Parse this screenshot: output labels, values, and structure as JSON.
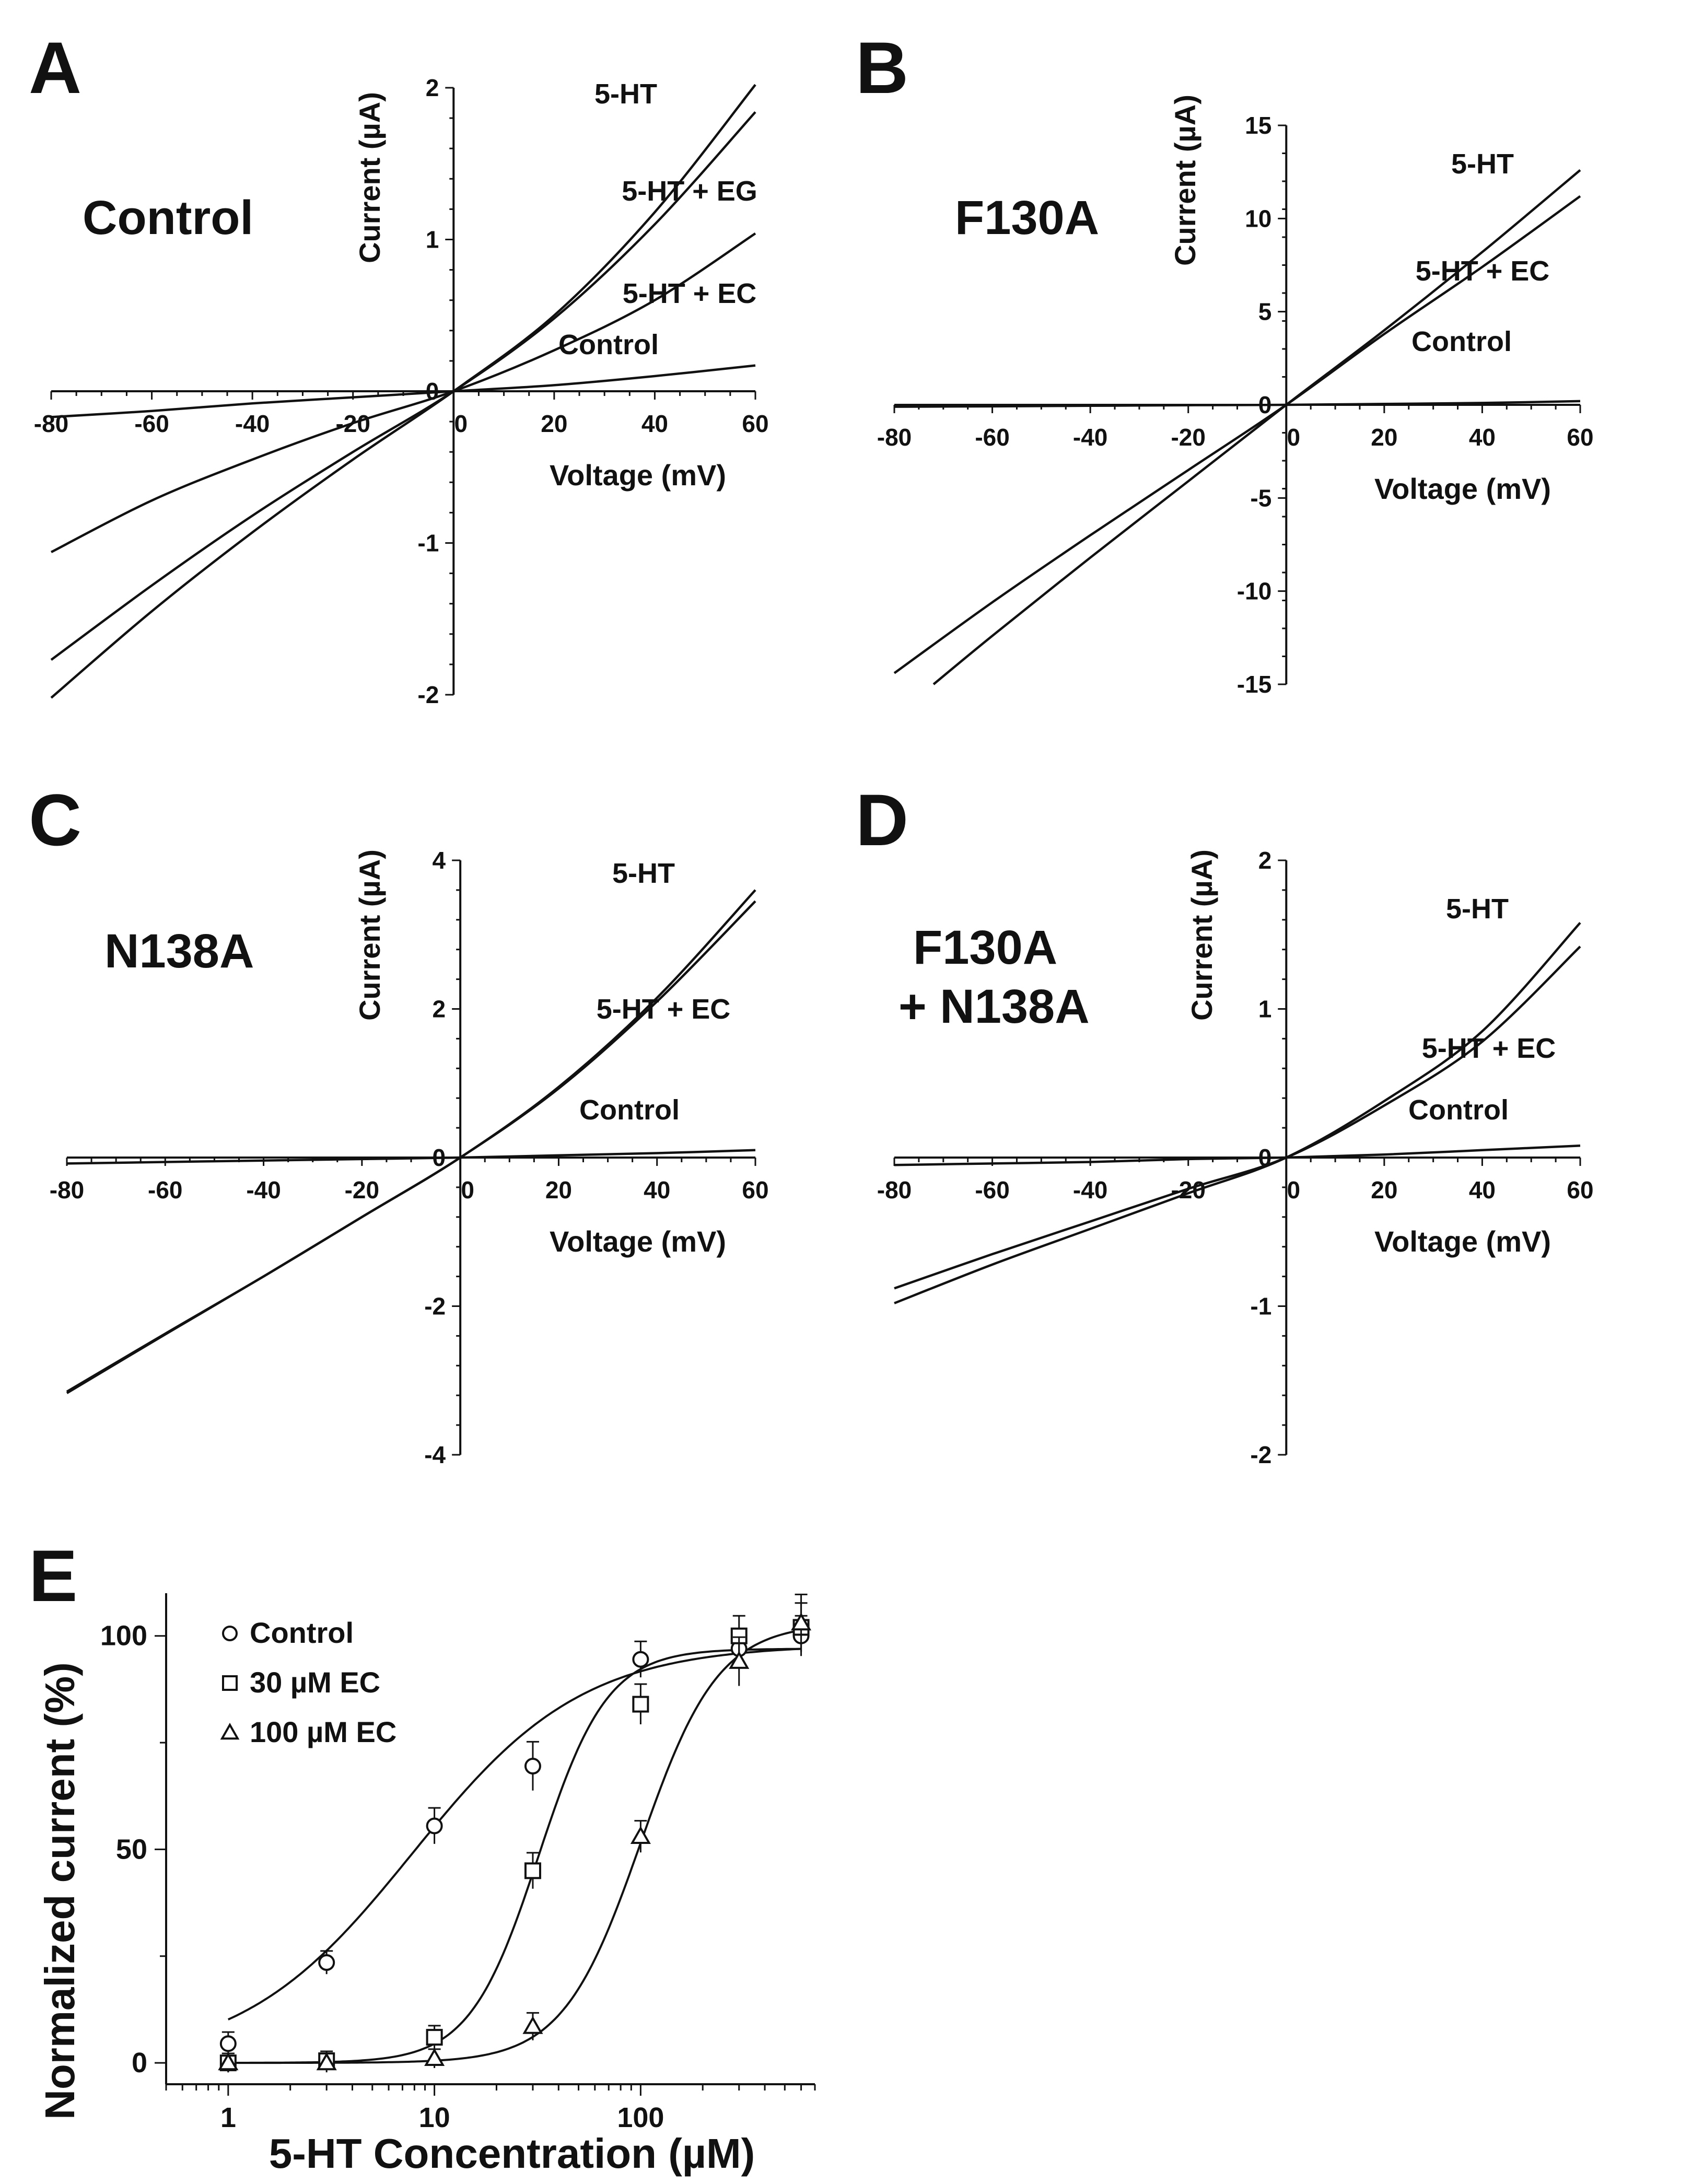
{
  "panels": [
    {
      "id": "A",
      "letter": "A",
      "condition": [
        "Control"
      ],
      "ylabel": "Current (µA)",
      "xlabel": "Voltage (mV)",
      "xticks": [
        "-80",
        "-60",
        "-40",
        "-20",
        "0",
        "20",
        "40",
        "60"
      ],
      "yticks": [
        "2",
        "1",
        "0",
        "-1",
        "-2"
      ],
      "series_labels": [
        "5-HT",
        "5-HT + EG",
        "5-HT + EC",
        "Control"
      ]
    },
    {
      "id": "B",
      "letter": "B",
      "condition": [
        "F130A"
      ],
      "ylabel": "Current (µA)",
      "xlabel": "Voltage (mV)",
      "xticks": [
        "-80",
        "-60",
        "-40",
        "-20",
        "0",
        "20",
        "40",
        "60"
      ],
      "yticks": [
        "15",
        "10",
        "5",
        "0",
        "-5",
        "-10",
        "-15"
      ],
      "series_labels": [
        "5-HT",
        "5-HT + EC",
        "Control"
      ]
    },
    {
      "id": "C",
      "letter": "C",
      "condition": [
        "N138A"
      ],
      "ylabel": "Current (µA)",
      "xlabel": "Voltage (mV)",
      "xticks": [
        "-80",
        "-60",
        "-40",
        "-20",
        "0",
        "20",
        "40",
        "60"
      ],
      "yticks": [
        "4",
        "2",
        "0",
        "-2",
        "-4"
      ],
      "series_labels": [
        "5-HT",
        "5-HT + EC",
        "Control"
      ]
    },
    {
      "id": "D",
      "letter": "D",
      "condition": [
        "F130A",
        "+ N138A"
      ],
      "ylabel": "Current (µA)",
      "xlabel": "Voltage (mV)",
      "xticks": [
        "-80",
        "-60",
        "-40",
        "-20",
        "0",
        "20",
        "40",
        "60"
      ],
      "yticks": [
        "2",
        "1",
        "0",
        "-1",
        "-2"
      ],
      "series_labels": [
        "5-HT",
        "5-HT + EC",
        "Control"
      ]
    },
    {
      "id": "E",
      "letter": "E",
      "ylabel": "Normalized current (%)",
      "xlabel": "5-HT Concentration (µM)",
      "xticks": [
        "1",
        "10",
        "100"
      ],
      "yticks": [
        "100",
        "50",
        "0"
      ],
      "legend": [
        "Control",
        "30 µM EC",
        "100 µM EC"
      ]
    }
  ],
  "chart_data": [
    {
      "type": "line",
      "panel": "A",
      "xlim": [
        -80,
        60
      ],
      "ylim": [
        -2,
        2
      ],
      "series": [
        {
          "name": "5-HT",
          "x": [
            -80,
            -60,
            -40,
            -20,
            0,
            20,
            40,
            60
          ],
          "y": [
            -2.02,
            -1.45,
            -0.93,
            -0.45,
            0,
            0.5,
            1.18,
            2.02
          ]
        },
        {
          "name": "5-HT + EG",
          "x": [
            -80,
            -60,
            -40,
            -20,
            0,
            20,
            40,
            60
          ],
          "y": [
            -1.77,
            -1.28,
            -0.82,
            -0.4,
            0,
            0.48,
            1.1,
            1.84
          ]
        },
        {
          "name": "5-HT + EC",
          "x": [
            -80,
            -60,
            -40,
            -20,
            0,
            20,
            40,
            60
          ],
          "y": [
            -1.06,
            -0.72,
            -0.45,
            -0.21,
            0,
            0.27,
            0.6,
            1.04
          ]
        },
        {
          "name": "Control",
          "x": [
            -80,
            -60,
            -40,
            -20,
            0,
            20,
            40,
            60
          ],
          "y": [
            -0.17,
            -0.13,
            -0.08,
            -0.04,
            0,
            0.04,
            0.1,
            0.17
          ]
        }
      ]
    },
    {
      "type": "line",
      "panel": "B",
      "xlim": [
        -80,
        60
      ],
      "ylim": [
        -15,
        15
      ],
      "series": [
        {
          "name": "5-HT",
          "x": [
            -72,
            -60,
            -40,
            -20,
            0,
            20,
            40,
            60
          ],
          "y": [
            -15,
            -12.4,
            -8.2,
            -4.1,
            0,
            4.0,
            8.2,
            12.6
          ]
        },
        {
          "name": "5-HT + EC",
          "x": [
            -80,
            -60,
            -40,
            -20,
            0,
            20,
            40,
            60
          ],
          "y": [
            -14.4,
            -10.6,
            -7.0,
            -3.5,
            0,
            3.8,
            7.4,
            11.2
          ]
        },
        {
          "name": "Control",
          "x": [
            -80,
            -60,
            -40,
            -20,
            0,
            20,
            40,
            60
          ],
          "y": [
            -0.1,
            -0.08,
            -0.05,
            -0.02,
            0,
            0.05,
            0.1,
            0.2
          ]
        }
      ]
    },
    {
      "type": "line",
      "panel": "C",
      "xlim": [
        -80,
        60
      ],
      "ylim": [
        -4,
        4
      ],
      "series": [
        {
          "name": "5-HT",
          "x": [
            -80,
            -60,
            -40,
            -20,
            0,
            20,
            40,
            60
          ],
          "y": [
            -3.15,
            -2.37,
            -1.6,
            -0.8,
            0,
            0.95,
            2.15,
            3.6
          ]
        },
        {
          "name": "5-HT + EC",
          "x": [
            -80,
            -60,
            -40,
            -20,
            0,
            20,
            40,
            60
          ],
          "y": [
            -3.17,
            -2.38,
            -1.6,
            -0.8,
            0,
            0.93,
            2.1,
            3.45
          ]
        },
        {
          "name": "Control",
          "x": [
            -80,
            -60,
            -40,
            -20,
            0,
            20,
            40,
            60
          ],
          "y": [
            -0.08,
            -0.06,
            -0.04,
            -0.02,
            0,
            0.03,
            0.06,
            0.1
          ]
        }
      ]
    },
    {
      "type": "line",
      "panel": "D",
      "xlim": [
        -80,
        60
      ],
      "ylim": [
        -2,
        2
      ],
      "series": [
        {
          "name": "5-HT",
          "x": [
            -80,
            -60,
            -40,
            -20,
            0,
            20,
            40,
            60
          ],
          "y": [
            -0.98,
            -0.72,
            -0.48,
            -0.24,
            0,
            0.38,
            0.85,
            1.58
          ]
        },
        {
          "name": "5-HT + EC",
          "x": [
            -80,
            -60,
            -40,
            -20,
            0,
            20,
            40,
            60
          ],
          "y": [
            -0.88,
            -0.65,
            -0.43,
            -0.21,
            0,
            0.35,
            0.78,
            1.42
          ]
        },
        {
          "name": "Control",
          "x": [
            -80,
            -60,
            -40,
            -20,
            0,
            20,
            40,
            60
          ],
          "y": [
            -0.05,
            -0.04,
            -0.03,
            -0.01,
            0,
            0.02,
            0.05,
            0.08
          ]
        }
      ]
    },
    {
      "type": "scatter",
      "panel": "E",
      "x_scale": "log",
      "xlim": [
        0.5,
        700
      ],
      "ylim": [
        -5,
        110
      ],
      "series": [
        {
          "name": "Control",
          "marker": "circle",
          "x": [
            1,
            3,
            10,
            30,
            100,
            300,
            600
          ],
          "y": [
            4.5,
            23.5,
            55.5,
            69.5,
            94.5,
            97,
            100
          ],
          "err": [
            1,
            1,
            2.5,
            4,
            2.5,
            2,
            3
          ],
          "fit": {
            "ec50": 7.8,
            "hill": 1.05,
            "top": 98
          }
        },
        {
          "name": "30 µM EC",
          "marker": "square",
          "x": [
            1,
            3,
            10,
            30,
            100,
            300,
            600
          ],
          "y": [
            0,
            0.5,
            6,
            45,
            84,
            100,
            102
          ],
          "err": [
            0.5,
            0.5,
            1,
            2.5,
            3,
            3,
            4
          ],
          "fit": {
            "ec50": 32,
            "hill": 2.6,
            "top": 97
          }
        },
        {
          "name": "100 µM EC",
          "marker": "triangle",
          "x": [
            1,
            3,
            10,
            30,
            100,
            300,
            600
          ],
          "y": [
            0,
            0,
            1,
            8.5,
            53,
            94,
            103
          ],
          "err": [
            0.5,
            0.5,
            0.5,
            1.5,
            2,
            4,
            5
          ],
          "fit": {
            "ec50": 100,
            "hill": 2.3,
            "top": 103
          }
        }
      ]
    }
  ]
}
